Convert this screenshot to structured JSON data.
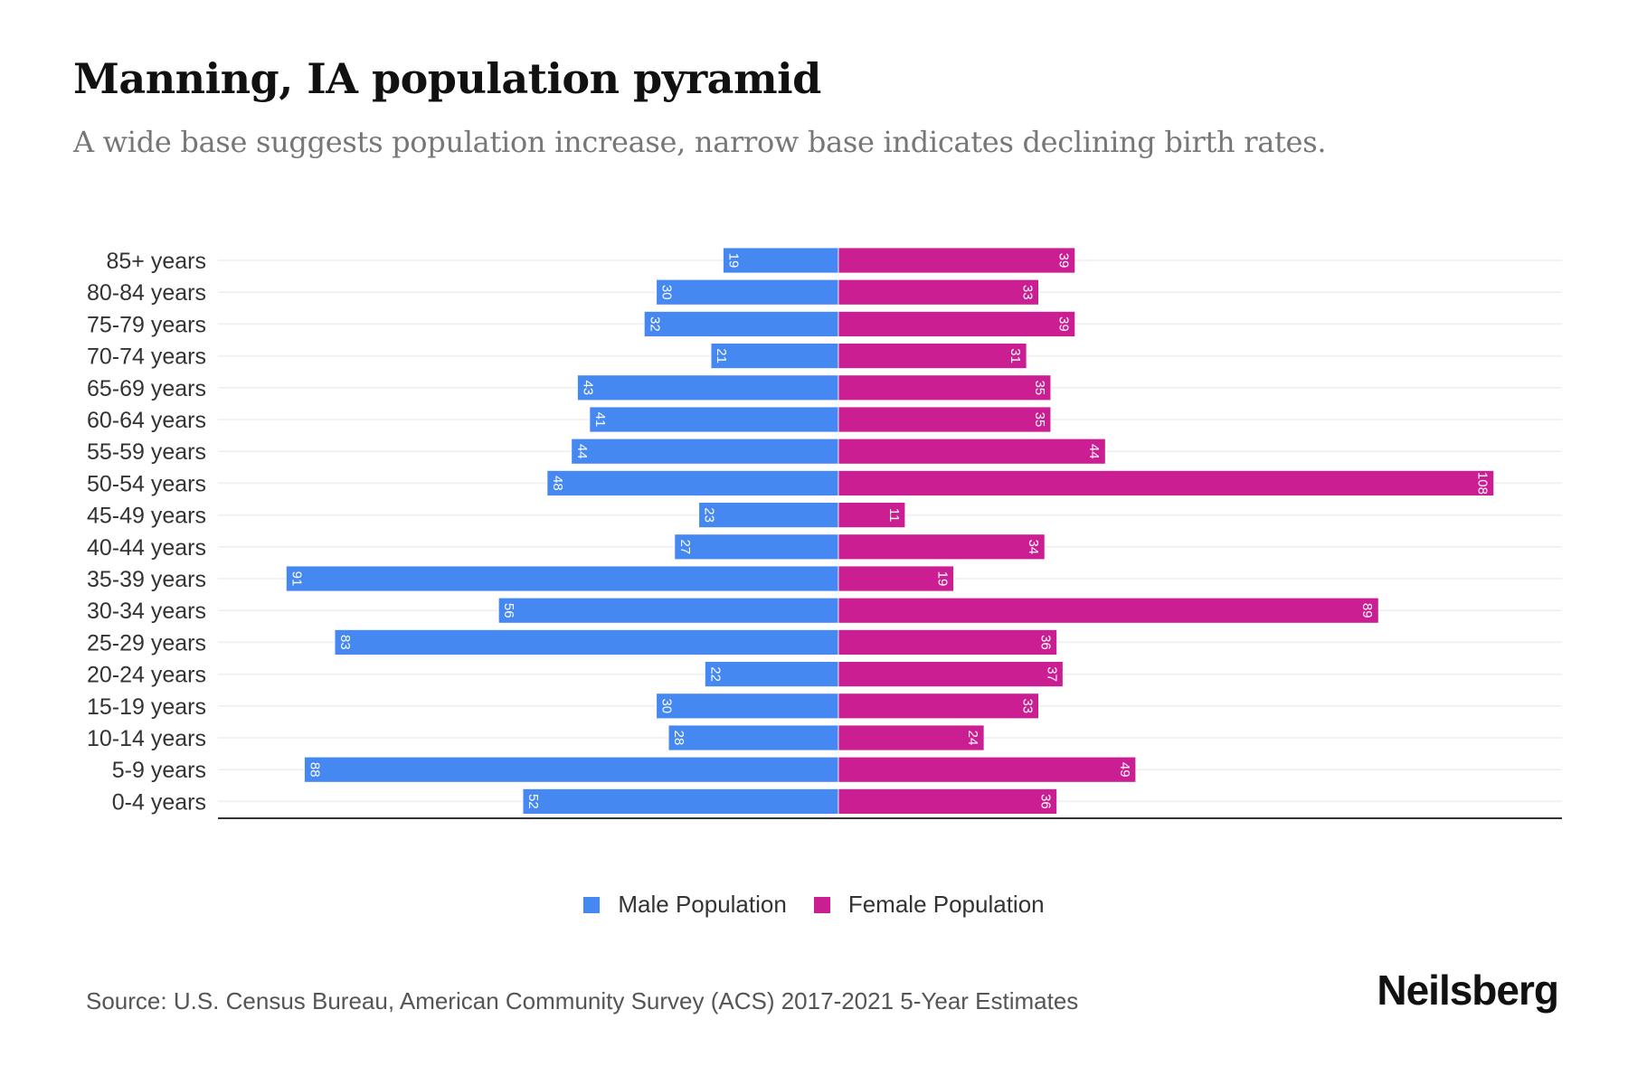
{
  "title": "Manning, IA population pyramid",
  "subtitle": "A wide base suggests population increase, narrow base indicates declining birth rates.",
  "source": "Source: U.S. Census Bureau, American Community Survey (ACS) 2017-2021 5-Year Estimates",
  "logo": "Neilsberg",
  "colors": {
    "male": "#4688f1",
    "female": "#cc1e93"
  },
  "chart_data": {
    "type": "bar",
    "orientation": "horizontal-diverging",
    "categories": [
      "85+ years",
      "80-84 years",
      "75-79 years",
      "70-74 years",
      "65-69 years",
      "60-64 years",
      "55-59 years",
      "50-54 years",
      "45-49 years",
      "40-44 years",
      "35-39 years",
      "30-34 years",
      "25-29 years",
      "20-24 years",
      "15-19 years",
      "10-14 years",
      "5-9 years",
      "0-4 years"
    ],
    "series": [
      {
        "name": "Male Population",
        "values": [
          19,
          30,
          32,
          21,
          43,
          41,
          44,
          48,
          23,
          27,
          91,
          56,
          83,
          22,
          30,
          28,
          88,
          52
        ]
      },
      {
        "name": "Female Population",
        "values": [
          39,
          33,
          39,
          31,
          35,
          35,
          44,
          108,
          11,
          34,
          19,
          89,
          36,
          37,
          33,
          24,
          49,
          36
        ]
      }
    ],
    "legend": "bottom",
    "grid": true
  }
}
